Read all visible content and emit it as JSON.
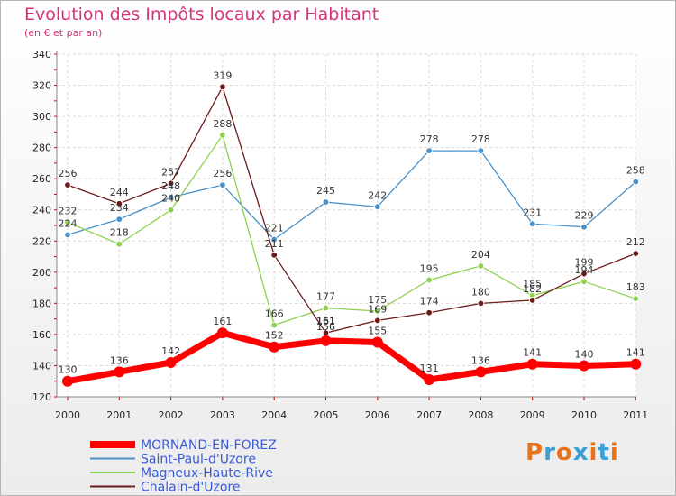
{
  "chart_data": {
    "type": "line",
    "title": "Evolution des Impôts locaux par Habitant",
    "subtitle": "(en € et par an)",
    "x": [
      "2000",
      "2001",
      "2002",
      "2003",
      "2004",
      "2005",
      "2006",
      "2007",
      "2008",
      "2009",
      "2010",
      "2011"
    ],
    "ylim": [
      120,
      340
    ],
    "yticks": [
      120,
      140,
      160,
      180,
      200,
      220,
      240,
      260,
      280,
      300,
      320,
      340
    ],
    "grid": true,
    "series": [
      {
        "name": "MORNAND-EN-FOREZ",
        "color": "#ff0000",
        "values": [
          130,
          136,
          142,
          161,
          152,
          156,
          155,
          131,
          136,
          141,
          140,
          141
        ],
        "labels": [
          "130",
          "136",
          "142",
          "161",
          "152",
          "",
          "155",
          "131",
          "136",
          "141",
          "140",
          "141"
        ]
      },
      {
        "name": "Saint-Paul-d'Uzore",
        "color": "#4a90c8",
        "values": [
          224,
          234,
          248,
          256,
          221,
          245,
          242,
          278,
          278,
          231,
          229,
          258
        ],
        "labels": [
          "224",
          "234",
          "248",
          "256",
          "221",
          "245",
          "242",
          "278",
          "278",
          "231",
          "229",
          "258"
        ]
      },
      {
        "name": "Magneux-Haute-Rive",
        "color": "#8fd14f",
        "values": [
          232,
          218,
          240,
          288,
          166,
          177,
          175,
          195,
          204,
          185,
          194,
          183
        ],
        "labels": [
          "232",
          "218",
          "240",
          "288",
          "166",
          "177",
          "175",
          "195",
          "204",
          "185",
          "194",
          "183"
        ]
      },
      {
        "name": "Chalain-d'Uzore",
        "color": "#6b1a1a",
        "values": [
          256,
          244,
          257,
          319,
          211,
          161,
          169,
          174,
          180,
          182,
          199,
          212
        ],
        "labels": [
          "256",
          "244",
          "257",
          "319",
          "211",
          "161",
          "169",
          "174",
          "180",
          "182",
          "199",
          "212"
        ]
      }
    ],
    "extra_labels": [
      "156",
      "161"
    ]
  },
  "legend_color": "#3a5bd9",
  "logo": {
    "text": "Proxiti",
    "colors": [
      "#e8731a",
      "#3aa0d8",
      "#e8731a",
      "#3aa0d8",
      "#e8731a",
      "#3aa0d8",
      "#e8731a"
    ]
  }
}
